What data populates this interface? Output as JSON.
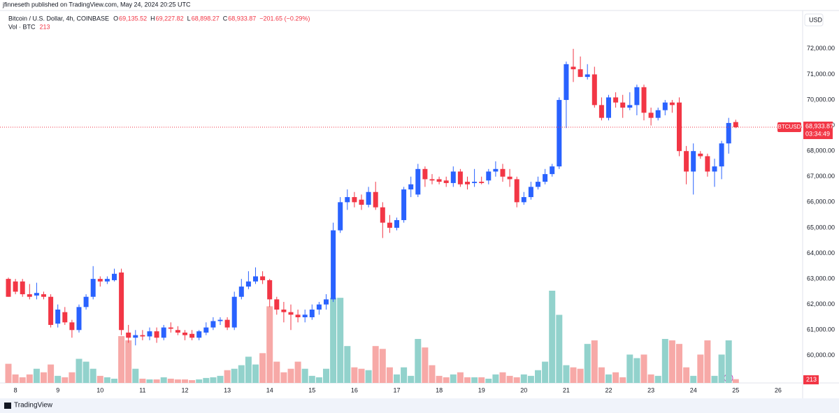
{
  "chart_data": {
    "type": "candlestick",
    "header": "jfinneseth published on TradingView.com, May 24, 2024 20:25 UTC",
    "title": "Bitcoin / U.S. Dollar, 4h, COINBASE",
    "legend_fields": [
      {
        "key": "O",
        "value": "69,135.52"
      },
      {
        "key": "H",
        "value": "69,227.82"
      },
      {
        "key": "L",
        "value": "68,898.27"
      },
      {
        "key": "C",
        "value": "68,933.87"
      }
    ],
    "change": "−201.65 (−0.29%)",
    "volume_title": "Vol · BTC",
    "currency": "USD",
    "symbol_tag": "BTCUSD",
    "last_price": {
      "value": 68933.87,
      "label": "68,933.87"
    },
    "countdown": "03:34:49",
    "footer": "TradingView",
    "up_color": "#2962ff",
    "down_color": "#f23645",
    "volume_up_color": "#92d2cc",
    "volume_down_color": "#f7a9a7",
    "categories": [
      null,
      "8",
      null,
      null,
      null,
      null,
      null,
      "9",
      null,
      null,
      null,
      null,
      null,
      "10",
      null,
      null,
      null,
      null,
      null,
      "11",
      null,
      null,
      null,
      null,
      null,
      "12",
      null,
      null,
      null,
      null,
      null,
      "13",
      null,
      null,
      null,
      null,
      null,
      "14",
      null,
      null,
      null,
      null,
      null,
      "15",
      null,
      null,
      null,
      null,
      null,
      "16",
      null,
      null,
      null,
      null,
      null,
      "17",
      null,
      null,
      null,
      null,
      null,
      "18",
      null,
      null,
      null,
      null,
      null,
      "19",
      null,
      null,
      null,
      null,
      null,
      "20",
      null,
      null,
      null,
      null,
      null,
      "21",
      null,
      null,
      null,
      null,
      null,
      "22",
      null,
      null,
      null,
      null,
      null,
      "23",
      null,
      null,
      null,
      null,
      null,
      "24",
      null,
      null,
      null,
      null,
      null,
      "25",
      null,
      null,
      null,
      null,
      null,
      "26"
    ],
    "open": [
      63000,
      62900,
      62900,
      62400,
      62350,
      62400,
      62300,
      61250,
      61700,
      61300,
      61000,
      61900,
      62300,
      63000,
      62900,
      62950,
      63250,
      60900,
      60700,
      60800,
      60750,
      60950,
      60700,
      61100,
      61000,
      60900,
      60850,
      60700,
      60900,
      61100,
      61350,
      61400,
      61100,
      62300,
      62700,
      62900,
      63100,
      62950,
      62200,
      61800,
      61700,
      61600,
      61500,
      61500,
      61800,
      62000,
      62200,
      64900,
      66000,
      66200,
      66100,
      65900,
      66400,
      65800,
      65200,
      65000,
      65300,
      66500,
      66300,
      67300,
      66900,
      66900,
      66850,
      66750,
      67200,
      66800,
      66750,
      66800,
      66850,
      67200,
      67300,
      67000,
      66900,
      66000,
      66200,
      66600,
      66800,
      67100,
      67400,
      70000,
      71300,
      71200,
      70900,
      71000,
      69800,
      69300,
      70100,
      69900,
      69700,
      69800,
      70500,
      69500,
      69300,
      69600,
      69900,
      69900,
      68000,
      67200,
      67900,
      67800,
      67200,
      67400,
      68300,
      69135.52,
      null,
      null,
      null,
      null,
      null,
      null
    ],
    "high": [
      63050,
      63000,
      63000,
      62800,
      62850,
      62500,
      62400,
      62000,
      61900,
      61400,
      62000,
      62400,
      63500,
      63100,
      63100,
      63400,
      63400,
      61200,
      61000,
      61000,
      61100,
      61100,
      61200,
      61300,
      61150,
      61000,
      61000,
      61000,
      61300,
      61500,
      61500,
      61500,
      62500,
      63000,
      63300,
      63450,
      63300,
      63000,
      62300,
      62100,
      62000,
      61800,
      61800,
      62000,
      62100,
      62400,
      65200,
      66200,
      66500,
      66400,
      66300,
      66600,
      66800,
      66000,
      65500,
      65400,
      66600,
      67000,
      67500,
      67400,
      67100,
      67000,
      67000,
      67400,
      67300,
      67000,
      67300,
      67000,
      67300,
      67600,
      67500,
      67300,
      67000,
      66400,
      66800,
      67000,
      67300,
      67500,
      70100,
      71500,
      72000,
      71700,
      71400,
      71300,
      70100,
      70200,
      70300,
      70200,
      70300,
      70600,
      70600,
      69700,
      69700,
      70000,
      70000,
      70100,
      68200,
      68300,
      68000,
      67900,
      67700,
      68400,
      69300,
      69227.82,
      null,
      null,
      null,
      null,
      null,
      null
    ],
    "low": [
      62300,
      62400,
      62300,
      62200,
      62200,
      62200,
      61100,
      61100,
      61200,
      60700,
      60900,
      61800,
      62200,
      62700,
      62800,
      62900,
      60800,
      60500,
      60400,
      60600,
      60600,
      60500,
      60600,
      60900,
      60800,
      60600,
      60600,
      60600,
      60800,
      61000,
      61200,
      61000,
      61000,
      62200,
      62600,
      62800,
      62800,
      61900,
      61600,
      61300,
      61000,
      61300,
      61300,
      61400,
      61600,
      61800,
      62100,
      64800,
      65700,
      65800,
      65700,
      65800,
      65700,
      64600,
      64800,
      64900,
      65200,
      66200,
      66200,
      66600,
      66700,
      66700,
      66600,
      66600,
      66600,
      66500,
      66600,
      66700,
      66700,
      67000,
      66800,
      66600,
      65800,
      65900,
      66100,
      66500,
      66700,
      67000,
      67300,
      68900,
      70700,
      70900,
      70800,
      69700,
      69200,
      69200,
      69700,
      69300,
      69600,
      69400,
      69200,
      69000,
      69200,
      69400,
      69500,
      67800,
      66700,
      66300,
      67700,
      67000,
      66600,
      66900,
      67900,
      68898.27,
      null,
      null,
      null,
      null,
      null,
      null
    ],
    "close": [
      62300,
      62500,
      62400,
      62300,
      62450,
      62300,
      61200,
      61800,
      61300,
      61000,
      61900,
      62300,
      63000,
      62900,
      63000,
      63200,
      61000,
      60700,
      60800,
      60750,
      60950,
      60700,
      61100,
      61050,
      60900,
      60800,
      60700,
      60950,
      61100,
      61350,
      61400,
      61100,
      62300,
      62700,
      62900,
      63100,
      62950,
      62200,
      61800,
      61700,
      61600,
      61500,
      61600,
      61800,
      62000,
      62200,
      64900,
      66000,
      66200,
      66000,
      65900,
      66400,
      65800,
      65200,
      65000,
      65300,
      66500,
      66700,
      67300,
      66900,
      66850,
      66800,
      66750,
      67200,
      66700,
      66700,
      66800,
      66750,
      67200,
      67300,
      67000,
      66900,
      66000,
      66200,
      66600,
      66800,
      67100,
      67400,
      70000,
      71400,
      71200,
      70900,
      71000,
      69800,
      69300,
      70100,
      69900,
      69700,
      69800,
      70500,
      69500,
      69300,
      69600,
      69900,
      69800,
      68000,
      67200,
      68000,
      67800,
      67200,
      67400,
      68300,
      69100,
      68933.87,
      null,
      null,
      null,
      null,
      null,
      null
    ],
    "volume": [
      1080,
      480,
      320,
      480,
      800,
      600,
      1040,
      400,
      320,
      600,
      1360,
      1200,
      800,
      400,
      320,
      240,
      2640,
      2400,
      800,
      240,
      200,
      200,
      320,
      240,
      200,
      200,
      160,
      200,
      280,
      320,
      400,
      720,
      800,
      1000,
      1480,
      1040,
      1680,
      4320,
      1200,
      600,
      800,
      1200,
      800,
      400,
      320,
      800,
      4800,
      4800,
      2080,
      880,
      800,
      720,
      2080,
      1920,
      880,
      480,
      880,
      400,
      2480,
      2000,
      1000,
      400,
      320,
      480,
      600,
      320,
      320,
      320,
      240,
      480,
      600,
      400,
      320,
      480,
      400,
      720,
      1200,
      5200,
      3840,
      1000,
      880,
      800,
      2200,
      2400,
      880,
      480,
      600,
      320,
      1600,
      1400,
      1600,
      480,
      400,
      2480,
      2400,
      2200,
      880,
      400,
      1600,
      2400,
      400,
      1600,
      2400,
      213,
      null,
      null,
      null,
      null,
      null,
      null
    ],
    "ylim": [
      58930,
      73500
    ],
    "yticks": [
      {
        "value": 60000,
        "label": "60,000.00"
      },
      {
        "value": 61000,
        "label": "61,000.00"
      },
      {
        "value": 62000,
        "label": "62,000.00"
      },
      {
        "value": 63000,
        "label": "63,000.00"
      },
      {
        "value": 64000,
        "label": "64,000.00"
      },
      {
        "value": 65000,
        "label": "65,000.00"
      },
      {
        "value": 66000,
        "label": "66,000.00"
      },
      {
        "value": 67000,
        "label": "67,000.00"
      },
      {
        "value": 68000,
        "label": "68,000.00"
      },
      {
        "value": 69000,
        "label": "69,000.00"
      },
      {
        "value": 70000,
        "label": "70,000.00"
      },
      {
        "value": 71000,
        "label": "71,000.00"
      },
      {
        "value": 72000,
        "label": "72,000.00"
      }
    ],
    "grid": false
  }
}
